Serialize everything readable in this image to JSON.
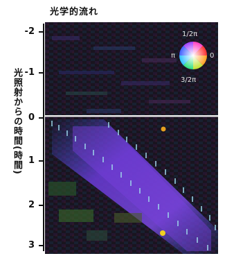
{
  "figure": {
    "title": "光学的流れ",
    "y_axis_label": "光照射からの時間(時間)",
    "y_ticks": [
      "-2",
      "-1",
      "0",
      "1",
      "2",
      "3"
    ],
    "color_wheel": {
      "top_label": "1/2π",
      "left_label": "π",
      "right_label": "0",
      "bottom_label": "3/2π"
    },
    "colors": {
      "background": "#141018",
      "purple_band": "#6a3bd8",
      "blue_band": "#3a55d0",
      "divider": "#e8e8e8",
      "tick_marks": "#9fd8ec",
      "yellow_spot": "#f0d020",
      "orange_spot": "#e6a020"
    }
  }
}
